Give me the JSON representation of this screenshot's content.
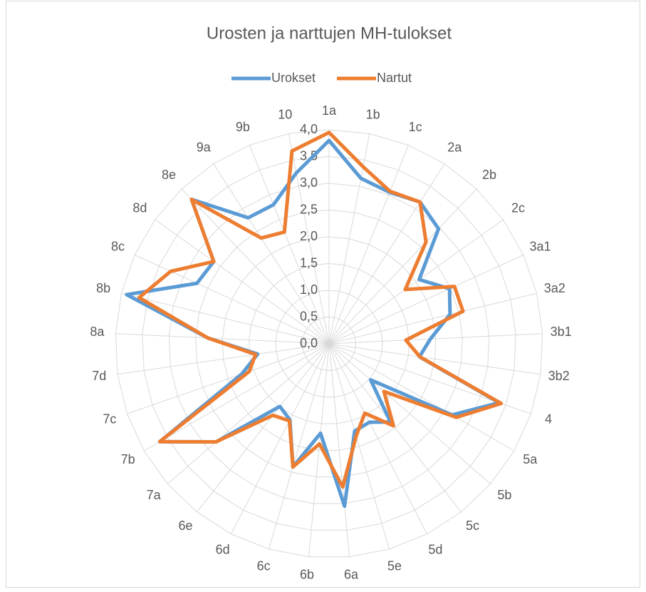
{
  "chart_data": {
    "type": "radar",
    "title": "Urosten ja narttujen MH-tulokset",
    "categories": [
      "1a",
      "1b",
      "1c",
      "2a",
      "2b",
      "2c",
      "3a1",
      "3a2",
      "3b1",
      "3b2",
      "4",
      "5a",
      "5b",
      "5c",
      "5d",
      "5e",
      "6a",
      "6b",
      "6c",
      "6d",
      "6e",
      "7a",
      "7b",
      "7c",
      "7d",
      "8a",
      "8b",
      "8c",
      "8d",
      "8e",
      "9a",
      "9b",
      "10"
    ],
    "series": [
      {
        "name": "Urokset",
        "color": "#5b9bd5",
        "values": [
          3.8,
          3.15,
          3.05,
          3.15,
          2.97,
          2.07,
          2.48,
          2.33,
          1.9,
          1.71,
          3.37,
          2.66,
          1.03,
          1.86,
          1.65,
          1.7,
          3.05,
          1.68,
          2.4,
          1.6,
          1.49,
          2.8,
          3.66,
          1.73,
          1.35,
          2.27,
          3.9,
          2.72,
          2.65,
          3.73,
          2.8,
          2.8,
          3.25
        ]
      },
      {
        "name": "Nartut",
        "color": "#ed7d31",
        "values": [
          3.95,
          3.37,
          3.07,
          3.15,
          2.63,
          1.75,
          2.58,
          2.58,
          1.44,
          1.72,
          3.41,
          2.75,
          1.36,
          1.95,
          1.46,
          1.8,
          2.69,
          1.88,
          2.4,
          1.62,
          1.7,
          2.8,
          3.66,
          1.58,
          1.39,
          2.27,
          3.66,
          3.26,
          2.65,
          3.73,
          2.35,
          2.25,
          3.67
        ]
      }
    ],
    "ylim": [
      0,
      4
    ],
    "yticks": [
      {
        "value": 0,
        "label": "0,0"
      },
      {
        "value": 0.5,
        "label": "0,5"
      },
      {
        "value": 1,
        "label": "1,0"
      },
      {
        "value": 1.5,
        "label": "1,5"
      },
      {
        "value": 2,
        "label": "2,0"
      },
      {
        "value": 2.5,
        "label": "2,5"
      },
      {
        "value": 3,
        "label": "3,0"
      },
      {
        "value": 3.5,
        "label": "3,5"
      },
      {
        "value": 4,
        "label": "4,0"
      }
    ],
    "grid": true,
    "legend": "top"
  }
}
